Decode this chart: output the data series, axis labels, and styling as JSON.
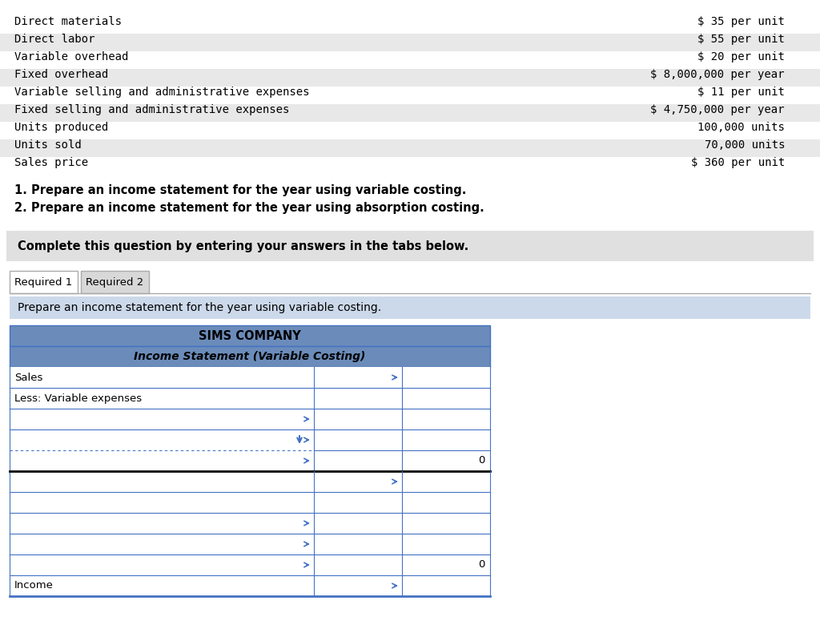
{
  "bg_color": "#ffffff",
  "top_section_bg_alternating": [
    "#ffffff",
    "#e8e8e8"
  ],
  "top_items": [
    [
      "Direct materials",
      "$ 35 per unit"
    ],
    [
      "Direct labor",
      "$ 55 per unit"
    ],
    [
      "Variable overhead",
      "$ 20 per unit"
    ],
    [
      "Fixed overhead",
      "$ 8,000,000 per year"
    ],
    [
      "Variable selling and administrative expenses",
      "$ 11 per unit"
    ],
    [
      "Fixed selling and administrative expenses",
      "$ 4,750,000 per year"
    ],
    [
      "Units produced",
      "100,000 units"
    ],
    [
      "Units sold",
      "70,000 units"
    ],
    [
      "Sales price",
      "$ 360 per unit"
    ]
  ],
  "instruction_1": "1. Prepare an income statement for the year using variable costing.",
  "instruction_2": "2. Prepare an income statement for the year using absorption costing.",
  "gray_box_text": "Complete this question by entering your answers in the tabs below.",
  "tab1": "Required 1",
  "tab2": "Required 2",
  "blue_instruction": "Prepare an income statement for the year using variable costing.",
  "table_title1": "SIMS COMPANY",
  "table_title2": "Income Statement (Variable Costing)",
  "table_header_bg": "#6b8cba",
  "table_border_color": "#4472c4",
  "font_mono": "DejaVu Sans Mono",
  "font_sans": "DejaVu Sans",
  "row_configs": [
    {
      "label": "Sales",
      "has_c1_arrow": false,
      "has_c2_arrow": true,
      "c2_val": "",
      "dotted": false,
      "dropdown": false,
      "thick_top": false
    },
    {
      "label": "Less: Variable expenses",
      "has_c1_arrow": false,
      "has_c2_arrow": false,
      "c2_val": "",
      "dotted": false,
      "dropdown": false,
      "thick_top": false
    },
    {
      "label": "",
      "has_c1_arrow": true,
      "has_c2_arrow": false,
      "c2_val": "",
      "dotted": false,
      "dropdown": false,
      "thick_top": false
    },
    {
      "label": "",
      "has_c1_arrow": true,
      "has_c2_arrow": false,
      "c2_val": "",
      "dotted": true,
      "dropdown": true,
      "thick_top": false
    },
    {
      "label": "",
      "has_c1_arrow": true,
      "has_c2_arrow": false,
      "c2_val": "0",
      "dotted": false,
      "dropdown": false,
      "thick_top": false
    },
    {
      "label": "",
      "has_c1_arrow": false,
      "has_c2_arrow": true,
      "c2_val": "",
      "dotted": false,
      "dropdown": false,
      "thick_top": true
    },
    {
      "label": "",
      "has_c1_arrow": false,
      "has_c2_arrow": false,
      "c2_val": "",
      "dotted": false,
      "dropdown": false,
      "thick_top": false
    },
    {
      "label": "",
      "has_c1_arrow": true,
      "has_c2_arrow": false,
      "c2_val": "",
      "dotted": false,
      "dropdown": false,
      "thick_top": false
    },
    {
      "label": "",
      "has_c1_arrow": true,
      "has_c2_arrow": false,
      "c2_val": "",
      "dotted": false,
      "dropdown": false,
      "thick_top": false
    },
    {
      "label": "",
      "has_c1_arrow": true,
      "has_c2_arrow": false,
      "c2_val": "0",
      "dotted": false,
      "dropdown": false,
      "thick_top": false
    },
    {
      "label": "Income",
      "has_c1_arrow": false,
      "has_c2_arrow": true,
      "c2_val": "",
      "dotted": false,
      "dropdown": false,
      "thick_top": false
    }
  ]
}
